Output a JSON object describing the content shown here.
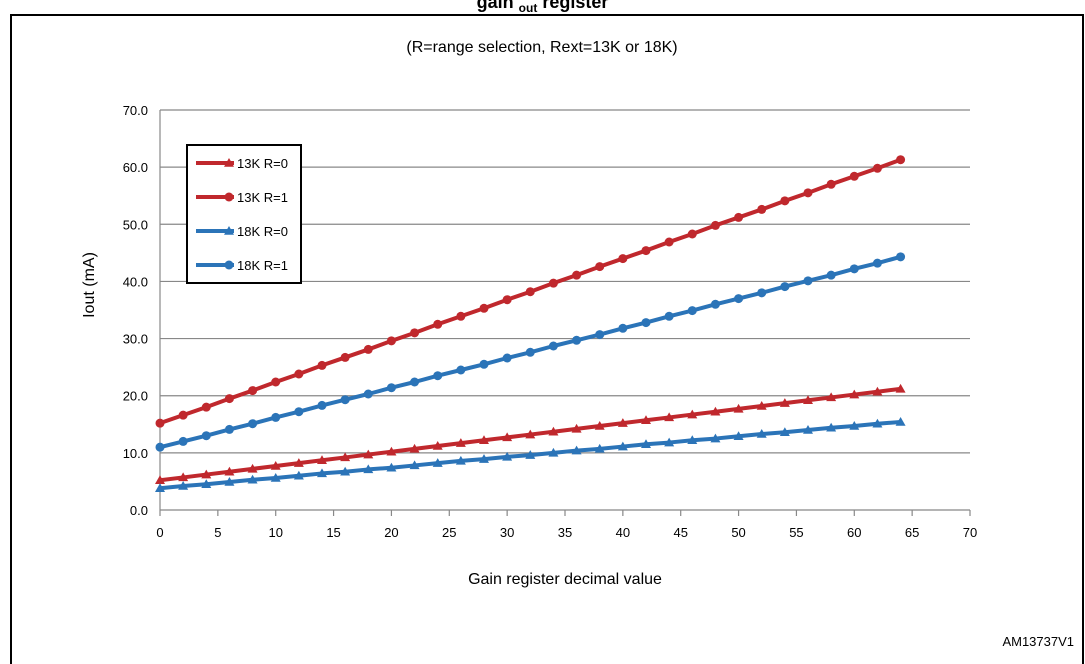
{
  "figure_title": {
    "main": "gain",
    "subscript": "out",
    "suffix": "register"
  },
  "chart_data": {
    "type": "line",
    "subtitle": "(R=range selection, Rext=13K or 18K)",
    "xlabel": "Gain register decimal value",
    "ylabel": "Iout (mA)",
    "xlim": [
      0,
      70
    ],
    "ylim": [
      0,
      70
    ],
    "x_ticks": [
      "0",
      "5",
      "10",
      "15",
      "20",
      "25",
      "30",
      "35",
      "40",
      "45",
      "50",
      "55",
      "60",
      "65",
      "70"
    ],
    "y_ticks": [
      "0.0",
      "10.0",
      "20.0",
      "30.0",
      "40.0",
      "50.0",
      "60.0",
      "70.0"
    ],
    "grid": "horizontal",
    "legend_position": "top-left",
    "x": [
      0,
      2,
      4,
      6,
      8,
      10,
      12,
      14,
      16,
      18,
      20,
      22,
      24,
      26,
      28,
      30,
      32,
      34,
      36,
      38,
      40,
      42,
      44,
      46,
      48,
      50,
      52,
      54,
      56,
      58,
      60,
      62,
      64
    ],
    "series": [
      {
        "name": "13K R=0",
        "color": "#c0282d",
        "marker": "triangle",
        "values": [
          5.2,
          5.7,
          6.2,
          6.7,
          7.2,
          7.7,
          8.2,
          8.7,
          9.2,
          9.7,
          10.2,
          10.7,
          11.2,
          11.7,
          12.2,
          12.7,
          13.2,
          13.7,
          14.2,
          14.7,
          15.2,
          15.7,
          16.2,
          16.7,
          17.2,
          17.7,
          18.2,
          18.7,
          19.2,
          19.7,
          20.2,
          20.7,
          21.2
        ]
      },
      {
        "name": "13K R=1",
        "color": "#c0282d",
        "marker": "circle",
        "values": [
          15.2,
          16.6,
          18.0,
          19.5,
          20.9,
          22.4,
          23.8,
          25.3,
          26.7,
          28.1,
          29.6,
          31.0,
          32.5,
          33.9,
          35.3,
          36.8,
          38.2,
          39.7,
          41.1,
          42.6,
          44.0,
          45.4,
          46.9,
          48.3,
          49.8,
          51.2,
          52.6,
          54.1,
          55.5,
          57.0,
          58.4,
          59.8,
          61.3
        ]
      },
      {
        "name": "18K R=0",
        "color": "#2b74b8",
        "marker": "triangle",
        "values": [
          3.8,
          4.2,
          4.5,
          4.9,
          5.3,
          5.6,
          6.0,
          6.4,
          6.7,
          7.1,
          7.4,
          7.8,
          8.2,
          8.6,
          8.9,
          9.3,
          9.6,
          10.0,
          10.4,
          10.7,
          11.1,
          11.5,
          11.8,
          12.2,
          12.5,
          12.9,
          13.3,
          13.6,
          14.0,
          14.4,
          14.7,
          15.1,
          15.4
        ]
      },
      {
        "name": "18K R=1",
        "color": "#2b74b8",
        "marker": "circle",
        "values": [
          11.0,
          12.0,
          13.0,
          14.1,
          15.1,
          16.2,
          17.2,
          18.3,
          19.3,
          20.3,
          21.4,
          22.4,
          23.5,
          24.5,
          25.5,
          26.6,
          27.6,
          28.7,
          29.7,
          30.7,
          31.8,
          32.8,
          33.9,
          34.9,
          36.0,
          37.0,
          38.0,
          39.1,
          40.1,
          41.1,
          42.2,
          43.2,
          44.3
        ]
      }
    ]
  },
  "figure_code": "AM13737V1"
}
